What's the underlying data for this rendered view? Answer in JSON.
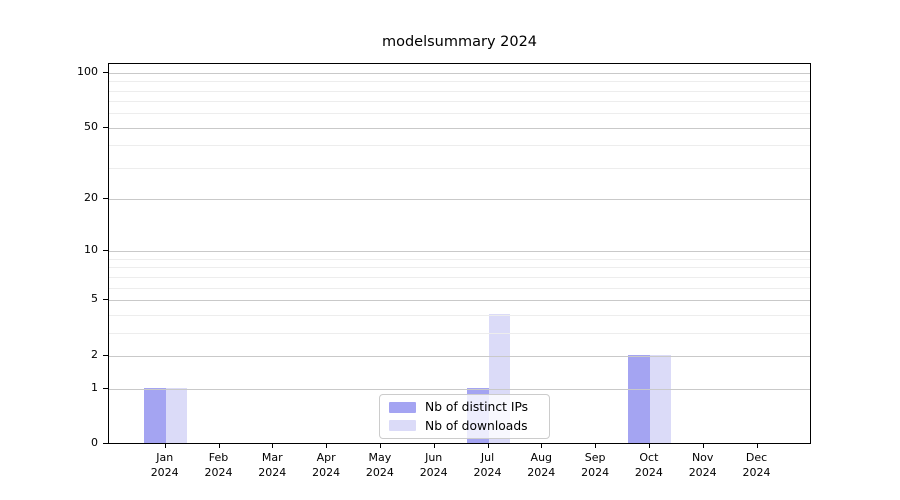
{
  "title": "modelsummary 2024",
  "legend": {
    "items": [
      {
        "label": "Nb of distinct IPs",
        "color": "#a4a4f2"
      },
      {
        "label": "Nb of downloads",
        "color": "#dbdbf8"
      }
    ]
  },
  "chart_data": {
    "type": "bar",
    "title": "modelsummary 2024",
    "categories": [
      "Jan 2024",
      "Feb 2024",
      "Mar 2024",
      "Apr 2024",
      "May 2024",
      "Jun 2024",
      "Jul 2024",
      "Aug 2024",
      "Sep 2024",
      "Oct 2024",
      "Nov 2024",
      "Dec 2024"
    ],
    "series": [
      {
        "name": "Nb of distinct IPs",
        "color": "#a4a4f2",
        "values": [
          1,
          0,
          0,
          0,
          0,
          0,
          1,
          0,
          0,
          2,
          0,
          0
        ]
      },
      {
        "name": "Nb of downloads",
        "color": "#dbdbf8",
        "values": [
          1,
          0,
          0,
          0,
          0,
          0,
          4,
          0,
          0,
          2,
          0,
          0
        ]
      }
    ],
    "xlabel": "",
    "ylabel": "",
    "yscale": "log1p",
    "ylim": [
      0,
      112
    ],
    "y_major_ticks": [
      0,
      1,
      2,
      5,
      10,
      20,
      50,
      100
    ],
    "y_minor_gridlines": [
      3,
      4,
      6,
      7,
      8,
      9,
      30,
      40,
      60,
      70,
      80,
      90
    ],
    "grid": "horizontal",
    "legend_position": "lower center",
    "colors": {
      "grid_major": "#c9c9c9",
      "grid_minor": "#ededed",
      "axis": "#000000",
      "legend_border": "#cccccc"
    }
  }
}
